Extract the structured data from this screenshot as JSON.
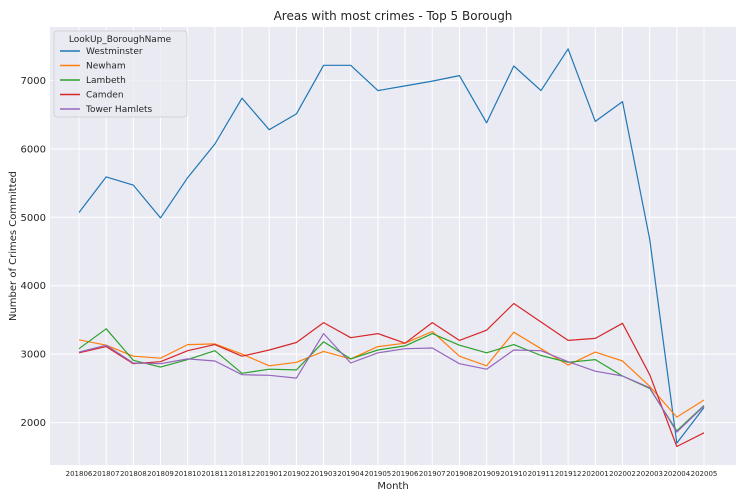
{
  "chart_data": {
    "type": "line",
    "title": "Areas with most crimes - Top 5 Borough",
    "xlabel": "Month",
    "ylabel": "Number of Crimes Committed",
    "legend_title": "LookUp_BoroughName",
    "legend_position": "top-left",
    "grid": true,
    "background": "#eaeaf2",
    "ylim": [
      1380,
      7780
    ],
    "yticks": [
      2000,
      3000,
      4000,
      5000,
      6000,
      7000
    ],
    "x": [
      "201806",
      "201807",
      "201808",
      "201809",
      "201810",
      "201811",
      "201812",
      "201901",
      "201902",
      "201903",
      "201904",
      "201905",
      "201906",
      "201907",
      "201908",
      "201909",
      "201910",
      "201911",
      "201912",
      "202001",
      "202002",
      "202003",
      "202004",
      "202005"
    ],
    "series": [
      {
        "name": "Westminster",
        "color": "#1f77b4",
        "values": [
          5070,
          5590,
          5470,
          4990,
          5580,
          6070,
          6740,
          6280,
          6510,
          7220,
          7220,
          6850,
          6920,
          6990,
          7070,
          6380,
          7210,
          6850,
          7460,
          6400,
          6690,
          4680,
          1700,
          2220
        ]
      },
      {
        "name": "Newham",
        "color": "#ff7f0e",
        "values": [
          3210,
          3130,
          2970,
          2940,
          3140,
          3150,
          3000,
          2830,
          2880,
          3040,
          2930,
          3110,
          3160,
          3330,
          2970,
          2830,
          3320,
          3080,
          2840,
          3030,
          2900,
          2530,
          2080,
          2330
        ]
      },
      {
        "name": "Lambeth",
        "color": "#2ca02c",
        "values": [
          3080,
          3370,
          2910,
          2810,
          2920,
          3050,
          2720,
          2780,
          2770,
          3180,
          2930,
          3060,
          3120,
          3300,
          3130,
          3020,
          3140,
          2980,
          2880,
          2920,
          2680,
          2500,
          1880,
          2250
        ]
      },
      {
        "name": "Camden",
        "color": "#d62728",
        "values": [
          3020,
          3110,
          2860,
          2890,
          3050,
          3140,
          2970,
          3060,
          3170,
          3460,
          3240,
          3300,
          3160,
          3460,
          3200,
          3350,
          3740,
          3470,
          3200,
          3230,
          3450,
          2700,
          1650,
          1850
        ]
      },
      {
        "name": "Tower Hamlets",
        "color": "#9467bd",
        "values": [
          3030,
          3130,
          2870,
          2860,
          2930,
          2900,
          2700,
          2690,
          2650,
          3300,
          2870,
          3020,
          3080,
          3090,
          2860,
          2780,
          3060,
          3050,
          2890,
          2750,
          2680,
          2510,
          1860,
          2240
        ]
      }
    ]
  }
}
